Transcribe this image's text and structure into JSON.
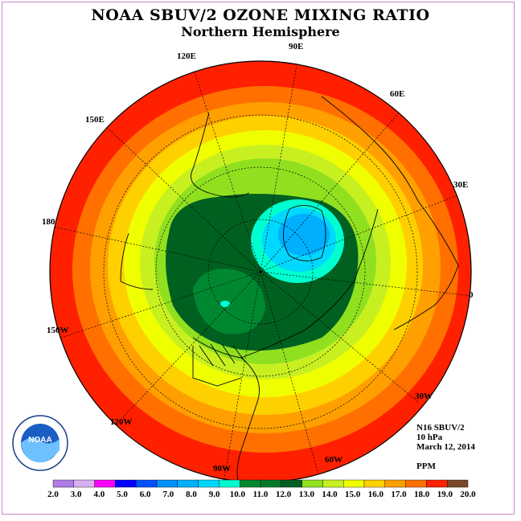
{
  "title": "NOAA SBUV/2 OZONE MIXING RATIO",
  "subtitle": "Northern Hemisphere",
  "longitude_labels": [
    "90E",
    "60E",
    "30E",
    "0",
    "30W",
    "60W",
    "90W",
    "120W",
    "150W",
    "180",
    "150E",
    "120E"
  ],
  "info": {
    "satellite": "N16 SBUV/2",
    "level": "10 hPa",
    "date": "March 12, 2014",
    "units": "PPM"
  },
  "logo_text": "NOAA",
  "logo_ring_text": "NATIONAL OCEANIC AND ATMOSPHERIC ADMINISTRATION · U.S. DEPARTMENT OF COMMERCE",
  "colorbar": {
    "ticks": [
      "2.0",
      "3.0",
      "4.0",
      "5.0",
      "6.0",
      "7.0",
      "8.0",
      "9.0",
      "10.0",
      "11.0",
      "12.0",
      "13.0",
      "14.0",
      "15.0",
      "16.0",
      "17.0",
      "18.0",
      "19.0",
      "20.0"
    ],
    "colors": [
      "#b07ce8",
      "#d8b0f0",
      "#ff00ff",
      "#0000ff",
      "#0050ff",
      "#0090ff",
      "#00b0ff",
      "#00d8ff",
      "#00ffd0",
      "#008830",
      "#007a28",
      "#006020",
      "#90e020",
      "#c8f020",
      "#f0ff00",
      "#ffd000",
      "#ffa000",
      "#ff7000",
      "#ff2000",
      "#7a4a2a"
    ]
  }
}
